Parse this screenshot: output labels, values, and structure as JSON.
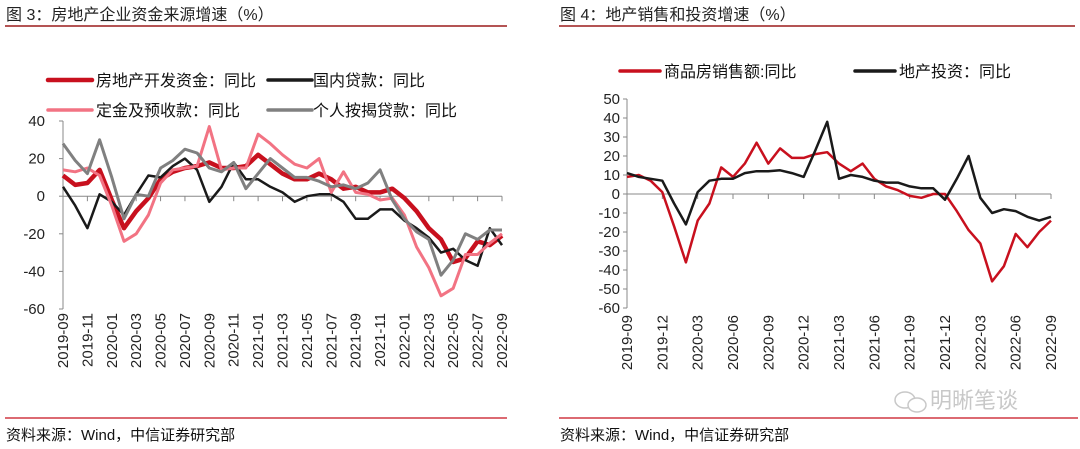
{
  "left": {
    "title": "图 3：房地产企业资金来源增速（%）",
    "source": "资料来源：Wind，中信证券研究部"
  },
  "right": {
    "title": "图 4：地产销售和投资增速（%）",
    "source": "资料来源：Wind，中信证券研究部"
  },
  "watermark": "明晰笔谈",
  "chart_data": [
    {
      "type": "line",
      "title": "图 3：房地产企业资金来源增速（%）",
      "ylim": [
        -60,
        40
      ],
      "yticks": [
        "40",
        "20",
        "0",
        "-20",
        "-40",
        "-60"
      ],
      "ytick_values": [
        40,
        20,
        0,
        -20,
        -40,
        -60
      ],
      "n_points": 37,
      "xtick_every": 2,
      "xticks": [
        "2019-09",
        "2019-11",
        "2020-01",
        "2020-03",
        "2020-05",
        "2020-07",
        "2020-09",
        "2020-11",
        "2021-01",
        "2021-03",
        "2021-05",
        "2021-07",
        "2021-09",
        "2021-11",
        "2022-01",
        "2022-03",
        "2022-05",
        "2022-07",
        "2022-09"
      ],
      "legend_placement": "top",
      "series": [
        {
          "name": "房地产开发资金：同比",
          "color": "#C8101E",
          "width": 4.5,
          "values": [
            11,
            6,
            7,
            14,
            -2,
            -17,
            -8,
            -1,
            9,
            13,
            15,
            16,
            18,
            15,
            15,
            16,
            22,
            17,
            12,
            9,
            9,
            12,
            9,
            4,
            5,
            2,
            2,
            4,
            -1,
            -8,
            -17,
            -23,
            -35,
            -33,
            -24,
            -26,
            -21
          ]
        },
        {
          "name": "国内贷款：同比",
          "color": "#1a1a1a",
          "width": 2.5,
          "values": [
            5,
            -5,
            -17,
            1,
            -3,
            -10,
            1,
            11,
            10,
            16,
            20,
            14,
            -3,
            5,
            18,
            9,
            9,
            5,
            2,
            -3,
            0,
            1,
            1,
            -3,
            -12,
            -12,
            -7,
            -7,
            -13,
            -17,
            -22,
            -30,
            -28,
            -34,
            -37,
            -17,
            -26
          ]
        },
        {
          "name": "定金及预收款：同比",
          "color": "#F27383",
          "width": 3,
          "values": [
            14,
            13,
            15,
            11,
            -5,
            -24,
            -20,
            -10,
            7,
            14,
            15,
            16,
            37,
            14,
            15,
            15,
            33,
            28,
            22,
            17,
            15,
            20,
            2,
            13,
            2,
            1,
            -2,
            -1,
            -10,
            -27,
            -38,
            -53,
            -49,
            -31,
            -31,
            -25,
            -20
          ]
        },
        {
          "name": "个人按揭贷款：同比",
          "color": "#808080",
          "width": 3,
          "values": [
            28,
            19,
            12,
            30,
            10,
            -12,
            1,
            0,
            15,
            19,
            25,
            23,
            15,
            13,
            18,
            4,
            12,
            20,
            15,
            10,
            10,
            8,
            5,
            6,
            4,
            7,
            14,
            -2,
            -12,
            -19,
            -23,
            -42,
            -34,
            -20,
            -23,
            -18,
            -18
          ]
        }
      ]
    },
    {
      "type": "line",
      "title": "图 4：地产销售和投资增速（%）",
      "ylim": [
        -60,
        50
      ],
      "yticks": [
        "50",
        "40",
        "30",
        "20",
        "10",
        "0",
        "-10",
        "-20",
        "-30",
        "-40",
        "-50",
        "-60"
      ],
      "ytick_values": [
        50,
        40,
        30,
        20,
        10,
        0,
        -10,
        -20,
        -30,
        -40,
        -50,
        -60
      ],
      "n_points": 37,
      "xtick_every": 3,
      "xticks": [
        "2019-09",
        "2019-12",
        "2020-03",
        "2020-06",
        "2020-09",
        "2020-12",
        "2021-03",
        "2021-06",
        "2021-09",
        "2021-12",
        "2022-03",
        "2022-06",
        "2022-09"
      ],
      "legend_placement": "top",
      "series": [
        {
          "name": "商品房销售额:同比",
          "color": "#C8101E",
          "width": 2.5,
          "values": [
            9,
            10,
            7,
            1,
            -17,
            -36,
            -14,
            -5,
            14,
            9,
            16,
            27,
            16,
            24,
            19,
            19,
            21,
            22,
            16,
            12,
            16,
            8,
            4,
            2,
            -1,
            -2,
            0,
            0,
            -9,
            -19,
            -26,
            -46,
            -38,
            -21,
            -28,
            -20,
            -14
          ]
        },
        {
          "name": "地产投资：同比",
          "color": "#1a1a1a",
          "width": 2.5,
          "values": [
            11,
            9,
            8,
            7,
            -5,
            -16,
            1,
            7,
            8,
            8,
            11,
            12,
            12,
            12.5,
            11,
            9,
            23,
            38,
            8,
            10,
            9,
            7,
            6,
            6,
            4,
            3,
            3,
            -3,
            8,
            20,
            -2,
            -10,
            -8,
            -9,
            -12,
            -14,
            -12
          ]
        }
      ]
    }
  ]
}
